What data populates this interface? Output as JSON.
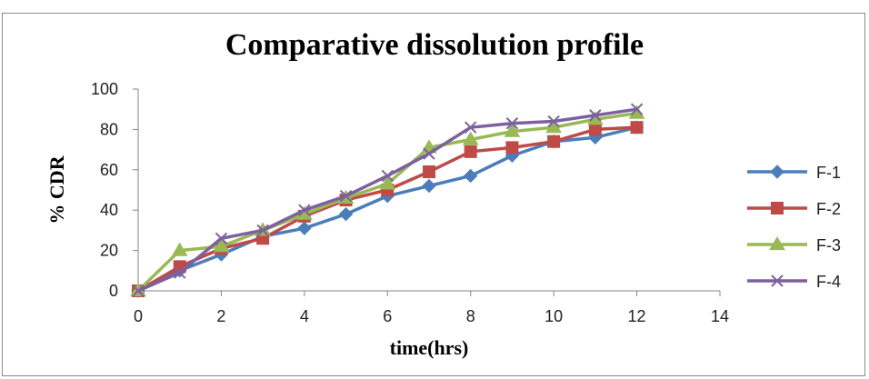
{
  "chart_data": {
    "type": "line",
    "title": "Comparative dissolution profile",
    "xlabel": "time(hrs)",
    "ylabel": "% CDR",
    "xlim": [
      0,
      14
    ],
    "ylim": [
      0,
      100
    ],
    "xticks": [
      0,
      2,
      4,
      6,
      8,
      10,
      12,
      14
    ],
    "yticks": [
      0,
      20,
      40,
      60,
      80,
      100
    ],
    "grid": false,
    "legend_position": "right",
    "x": [
      0,
      1,
      2,
      3,
      4,
      5,
      6,
      7,
      8,
      9,
      10,
      11,
      12
    ],
    "series": [
      {
        "name": "F-1",
        "color": "#4a7ebb",
        "marker": "diamond",
        "values": [
          0,
          10,
          18,
          27,
          31,
          38,
          47,
          52,
          57,
          67,
          74,
          76,
          81
        ]
      },
      {
        "name": "F-2",
        "color": "#be4b48",
        "marker": "square",
        "values": [
          0,
          12,
          21,
          26,
          37,
          45,
          50,
          59,
          69,
          71,
          74,
          80,
          81
        ]
      },
      {
        "name": "F-3",
        "color": "#98b954",
        "marker": "triangle",
        "values": [
          0,
          20,
          22,
          30,
          38,
          46,
          53,
          71,
          75,
          79,
          81,
          85,
          88
        ]
      },
      {
        "name": "F-4",
        "color": "#7d60a0",
        "marker": "x",
        "values": [
          0,
          9,
          26,
          30,
          40,
          47,
          57,
          68,
          81,
          83,
          84,
          87,
          90
        ]
      }
    ]
  }
}
